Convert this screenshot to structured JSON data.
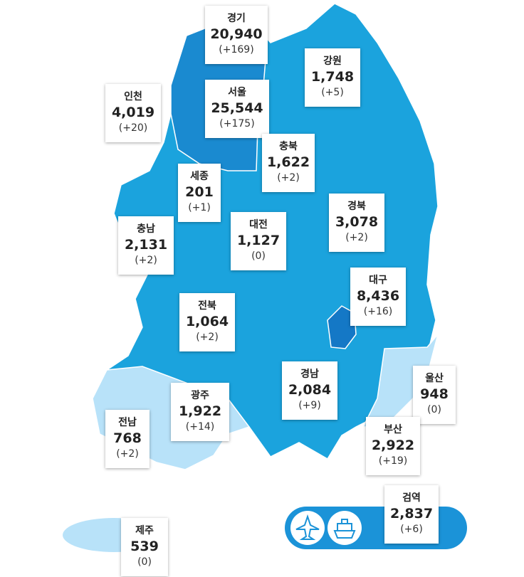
{
  "regions": [
    {
      "name": "경기",
      "count": "20,940",
      "delta": "(+169)"
    },
    {
      "name": "강원",
      "count": "1,748",
      "delta": "(+5)"
    },
    {
      "name": "인천",
      "count": "4,019",
      "delta": "(+20)"
    },
    {
      "name": "서울",
      "count": "25,544",
      "delta": "(+175)"
    },
    {
      "name": "충북",
      "count": "1,622",
      "delta": "(+2)"
    },
    {
      "name": "세종",
      "count": "201",
      "delta": "(+1)"
    },
    {
      "name": "충남",
      "count": "2,131",
      "delta": "(+2)"
    },
    {
      "name": "대전",
      "count": "1,127",
      "delta": "(0)"
    },
    {
      "name": "경북",
      "count": "3,078",
      "delta": "(+2)"
    },
    {
      "name": "대구",
      "count": "8,436",
      "delta": "(+16)"
    },
    {
      "name": "전북",
      "count": "1,064",
      "delta": "(+2)"
    },
    {
      "name": "경남",
      "count": "2,084",
      "delta": "(+9)"
    },
    {
      "name": "울산",
      "count": "948",
      "delta": "(0)"
    },
    {
      "name": "광주",
      "count": "1,922",
      "delta": "(+14)"
    },
    {
      "name": "전남",
      "count": "768",
      "delta": "(+2)"
    },
    {
      "name": "부산",
      "count": "2,922",
      "delta": "(+19)"
    },
    {
      "name": "검역",
      "count": "2,837",
      "delta": "(+6)"
    },
    {
      "name": "제주",
      "count": "539",
      "delta": "(0)"
    }
  ]
}
